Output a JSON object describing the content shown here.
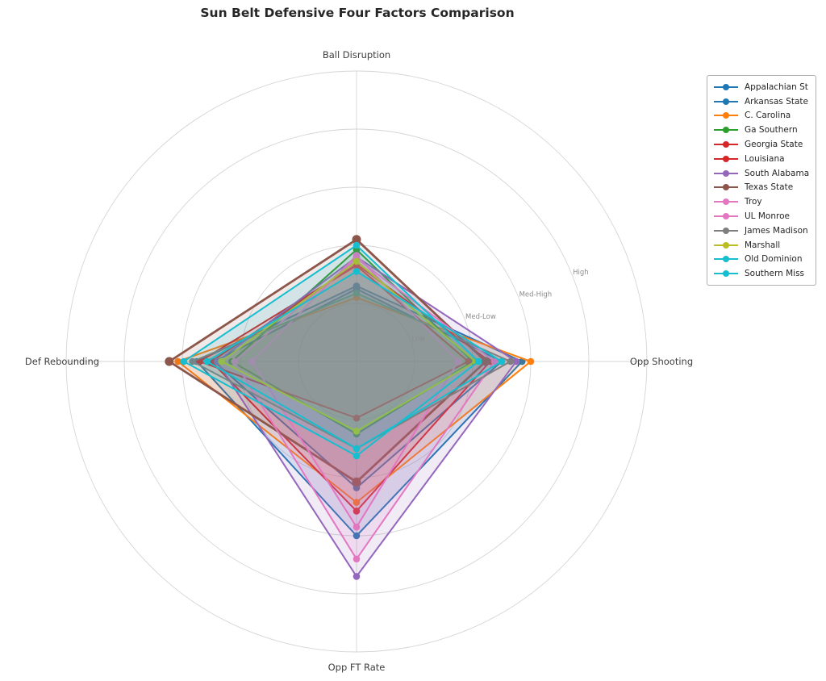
{
  "title": "Sun Belt Defensive Four Factors Comparison",
  "chart_data": {
    "type": "radar",
    "categories": [
      "Ball Disruption",
      "Opp Shooting",
      "Opp FT Rate",
      "Def Rebounding"
    ],
    "ring_labels": [
      "Low",
      "Med-Low",
      "Med-High",
      "High"
    ],
    "ring_values": [
      0.2,
      0.4,
      0.6,
      0.8
    ],
    "rmax": 1.0,
    "grid": true,
    "grid_color": "#d5d5d5",
    "axis_label_color": "#3f3f3f",
    "ring_label_color": "#8c8c8c",
    "fill_alpha": 0.13,
    "legend_position": "upper-right",
    "series": [
      {
        "name": "Appalachian St",
        "color": "#1f77b4",
        "linewidth": 2,
        "values": [
          0.26,
          0.57,
          0.6,
          0.55
        ]
      },
      {
        "name": "Arkansas State",
        "color": "#1f77b4",
        "linewidth": 2,
        "values": [
          0.25,
          0.5,
          0.435,
          0.49
        ]
      },
      {
        "name": "C. Carolina",
        "color": "#ff7f0e",
        "linewidth": 2,
        "values": [
          0.22,
          0.6,
          0.485,
          0.615
        ]
      },
      {
        "name": "Ga Southern",
        "color": "#2ca02c",
        "linewidth": 2,
        "values": [
          0.385,
          0.4,
          0.25,
          0.43
        ]
      },
      {
        "name": "Georgia State",
        "color": "#d62728",
        "linewidth": 2,
        "values": [
          0.335,
          0.46,
          0.515,
          0.5
        ]
      },
      {
        "name": "Louisiana",
        "color": "#d62728",
        "linewidth": 2,
        "values": [
          0.33,
          0.385,
          0.195,
          0.54
        ]
      },
      {
        "name": "South Alabama",
        "color": "#9467bd",
        "linewidth": 2,
        "values": [
          0.36,
          0.55,
          0.74,
          0.48
        ]
      },
      {
        "name": "Texas State",
        "color": "#8c564b",
        "linewidth": 2.8,
        "values": [
          0.42,
          0.445,
          0.415,
          0.645
        ]
      },
      {
        "name": "Troy",
        "color": "#e377c2",
        "linewidth": 2,
        "values": [
          0.365,
          0.35,
          0.57,
          0.36
        ]
      },
      {
        "name": "UL Monroe",
        "color": "#e377c2",
        "linewidth": 2,
        "values": [
          0.355,
          0.475,
          0.68,
          0.42
        ]
      },
      {
        "name": "James Madison",
        "color": "#7f7f7f",
        "linewidth": 2,
        "values": [
          0.235,
          0.53,
          0.3,
          0.565
        ]
      },
      {
        "name": "Marshall",
        "color": "#bcbd22",
        "linewidth": 2,
        "values": [
          0.345,
          0.41,
          0.24,
          0.465
        ]
      },
      {
        "name": "Old Dominion",
        "color": "#17becf",
        "linewidth": 2,
        "values": [
          0.4,
          0.42,
          0.325,
          0.595
        ]
      },
      {
        "name": "Southern Miss",
        "color": "#17becf",
        "linewidth": 2,
        "values": [
          0.31,
          0.5,
          0.3,
          0.515
        ]
      }
    ]
  }
}
